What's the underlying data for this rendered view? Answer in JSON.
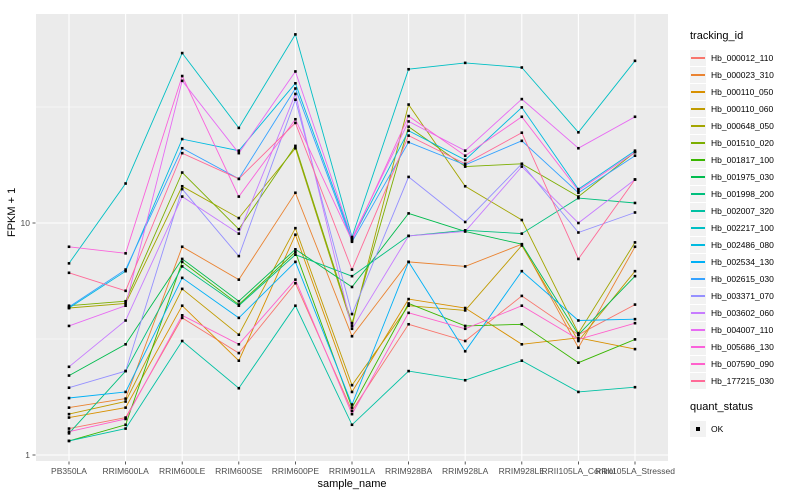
{
  "chart_data": {
    "type": "line",
    "title": "",
    "xlabel": "sample_name",
    "ylabel": "FPKM + 1",
    "y_scale": "log10",
    "ylim": [
      0.94,
      80
    ],
    "y_ticks": [
      1,
      10
    ],
    "y_tick_labels": [
      "1",
      "10"
    ],
    "y_minor_gridlines": [
      3.162,
      31.62
    ],
    "grid": true,
    "panel_background": "#EBEBEB",
    "gridline_color": "#FFFFFF",
    "point_color": "#000000",
    "legend_position": "right",
    "legend_titles": {
      "series": "tracking_id",
      "points": "quant_status"
    },
    "point_status_legend": {
      "label": "OK",
      "shape": "filled-square",
      "color": "#000000"
    },
    "categories": [
      "PB350LA",
      "RRIM600LA",
      "RRIM600LE",
      "RRIM600SE",
      "RRIM600PE",
      "RRIM901LA",
      "RRIM928BA",
      "RRIM928LA",
      "RRIM928LE",
      "RRII105LA_Control",
      "RRII105LA_Stressed"
    ],
    "series": [
      {
        "name": "Hb_000012_110",
        "color": "#F8766D",
        "values": [
          1.3,
          1.45,
          3.9,
          2.75,
          5.5,
          1.55,
          3.66,
          3.1,
          4.85,
          3.3,
          4.45
        ]
      },
      {
        "name": "Hb_000023_310",
        "color": "#EA8331",
        "values": [
          1.6,
          1.75,
          7.9,
          5.7,
          13.5,
          3.25,
          6.8,
          6.5,
          8.1,
          2.9,
          7.9
        ]
      },
      {
        "name": "Hb_000110_050",
        "color": "#D89000",
        "values": [
          1.45,
          1.6,
          4.4,
          2.55,
          8.9,
          1.87,
          4.7,
          4.3,
          3.0,
          3.2,
          2.86
        ]
      },
      {
        "name": "Hb_000110_060",
        "color": "#C09B00",
        "values": [
          1.5,
          1.7,
          5.2,
          3.3,
          9.5,
          2.0,
          4.4,
          4.2,
          8.0,
          3.1,
          6.2
        ]
      },
      {
        "name": "Hb_000648_050",
        "color": "#A3A500",
        "values": [
          4.3,
          4.5,
          14.4,
          10.5,
          21.0,
          3.6,
          32.4,
          14.4,
          10.3,
          3.35,
          8.25
        ]
      },
      {
        "name": "Hb_001510_020",
        "color": "#7CAE00",
        "values": [
          4.4,
          4.6,
          16.5,
          9.4,
          21.5,
          3.7,
          26.0,
          17.5,
          18.0,
          13.0,
          20.2
        ]
      },
      {
        "name": "Hb_001817_100",
        "color": "#39B600",
        "values": [
          1.15,
          1.35,
          6.8,
          4.45,
          7.5,
          1.6,
          4.5,
          3.6,
          3.66,
          2.5,
          3.15
        ]
      },
      {
        "name": "Hb_001975_030",
        "color": "#00BB4E",
        "values": [
          2.2,
          3.0,
          7.0,
          4.6,
          7.7,
          5.3,
          11.0,
          9.2,
          8.1,
          3.3,
          5.9
        ]
      },
      {
        "name": "Hb_001998_200",
        "color": "#00BF7D",
        "values": [
          1.24,
          2.3,
          6.5,
          4.4,
          7.3,
          5.9,
          8.8,
          9.3,
          9.0,
          12.8,
          12.2
        ]
      },
      {
        "name": "Hb_002007_320",
        "color": "#00C1A3",
        "values": [
          1.15,
          1.3,
          3.1,
          1.94,
          4.4,
          1.35,
          2.3,
          2.1,
          2.55,
          1.87,
          1.96
        ]
      },
      {
        "name": "Hb_002217_100",
        "color": "#00BFC4",
        "values": [
          6.7,
          14.8,
          54.0,
          25.7,
          65.0,
          8.7,
          46.0,
          49.0,
          46.8,
          24.6,
          50.0
        ]
      },
      {
        "name": "Hb_002486_080",
        "color": "#00BAE0",
        "values": [
          4.3,
          6.2,
          23.0,
          20.5,
          40.0,
          8.5,
          25.0,
          18.7,
          31.5,
          14.0,
          20.5
        ]
      },
      {
        "name": "Hb_002534_130",
        "color": "#00B0F6",
        "values": [
          1.76,
          1.87,
          5.8,
          3.9,
          6.8,
          1.65,
          6.8,
          2.8,
          6.2,
          3.8,
          3.85
        ]
      },
      {
        "name": "Hb_002615_030",
        "color": "#35A2FF",
        "values": [
          4.35,
          6.3,
          21.0,
          15.5,
          38.0,
          8.3,
          22.3,
          17.8,
          22.6,
          13.5,
          19.5
        ]
      },
      {
        "name": "Hb_003371_070",
        "color": "#9590FF",
        "values": [
          1.95,
          2.3,
          14.0,
          7.2,
          34.0,
          4.05,
          15.8,
          10.1,
          18.0,
          9.1,
          11.1
        ]
      },
      {
        "name": "Hb_003602_060",
        "color": "#C77CFF",
        "values": [
          2.4,
          3.8,
          13.0,
          9.0,
          36.0,
          3.5,
          8.8,
          9.2,
          17.5,
          10.0,
          15.4
        ]
      },
      {
        "name": "Hb_004007_110",
        "color": "#E76BF3",
        "values": [
          3.6,
          4.4,
          41.0,
          20.0,
          45.0,
          8.6,
          27.4,
          20.5,
          34.2,
          21.0,
          28.7
        ]
      },
      {
        "name": "Hb_005686_130",
        "color": "#FA62DB",
        "values": [
          7.9,
          7.4,
          43.0,
          13.0,
          28.0,
          8.4,
          28.9,
          19.5,
          28.7,
          13.8,
          20.2
        ]
      },
      {
        "name": "Hb_007590_090",
        "color": "#FF61CC",
        "values": [
          1.26,
          1.43,
          4.0,
          3.0,
          5.7,
          1.5,
          4.1,
          3.5,
          4.4,
          3.15,
          3.7
        ]
      },
      {
        "name": "Hb_177215_030",
        "color": "#FF6A98",
        "values": [
          6.1,
          5.1,
          20.0,
          15.5,
          27.0,
          6.3,
          23.8,
          18.0,
          24.5,
          7.0,
          15.4
        ]
      }
    ]
  }
}
